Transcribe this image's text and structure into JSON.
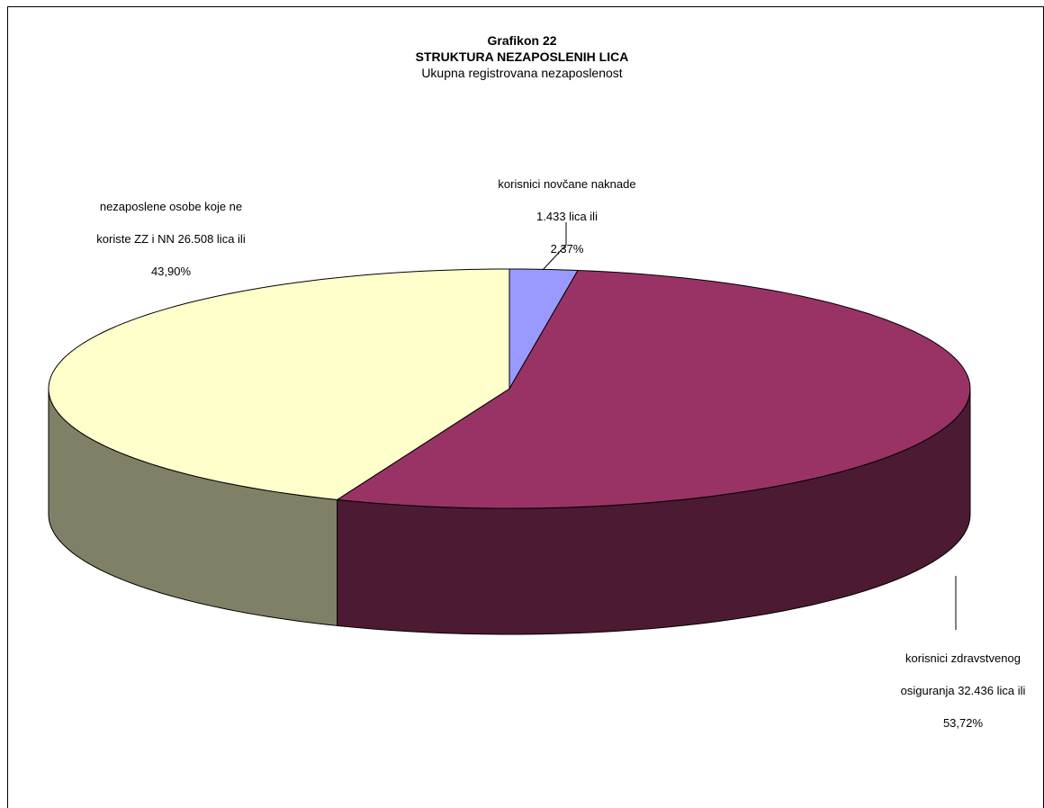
{
  "chart_data": {
    "type": "pie",
    "title": "Grafikon 22",
    "subtitle": "STRUKTURA NEZAPOSLENIH LICA",
    "subtitle2": "Ukupna registrovana nezaposlenost",
    "slices": [
      {
        "label_lines": [
          "korisnici novčane naknade",
          "1.433 lica ili",
          "2,37%"
        ],
        "value": 1433,
        "percent": 2.37,
        "color": "#9999ff",
        "side_color": "#4d4d80"
      },
      {
        "label_lines": [
          "korisnici zdravstvenog",
          "osiguranja 32.436 lica ili",
          "53,72%"
        ],
        "value": 32436,
        "percent": 53.72,
        "color": "#993366",
        "side_color": "#4d1a33"
      },
      {
        "label_lines": [
          "nezaposlene osobe koje ne",
          "koriste ZZ i NN 26.508 lica ili",
          "43,90%"
        ],
        "value": 26508,
        "percent": 43.9,
        "color": "#ffffcc",
        "side_color": "#808066"
      }
    ]
  }
}
